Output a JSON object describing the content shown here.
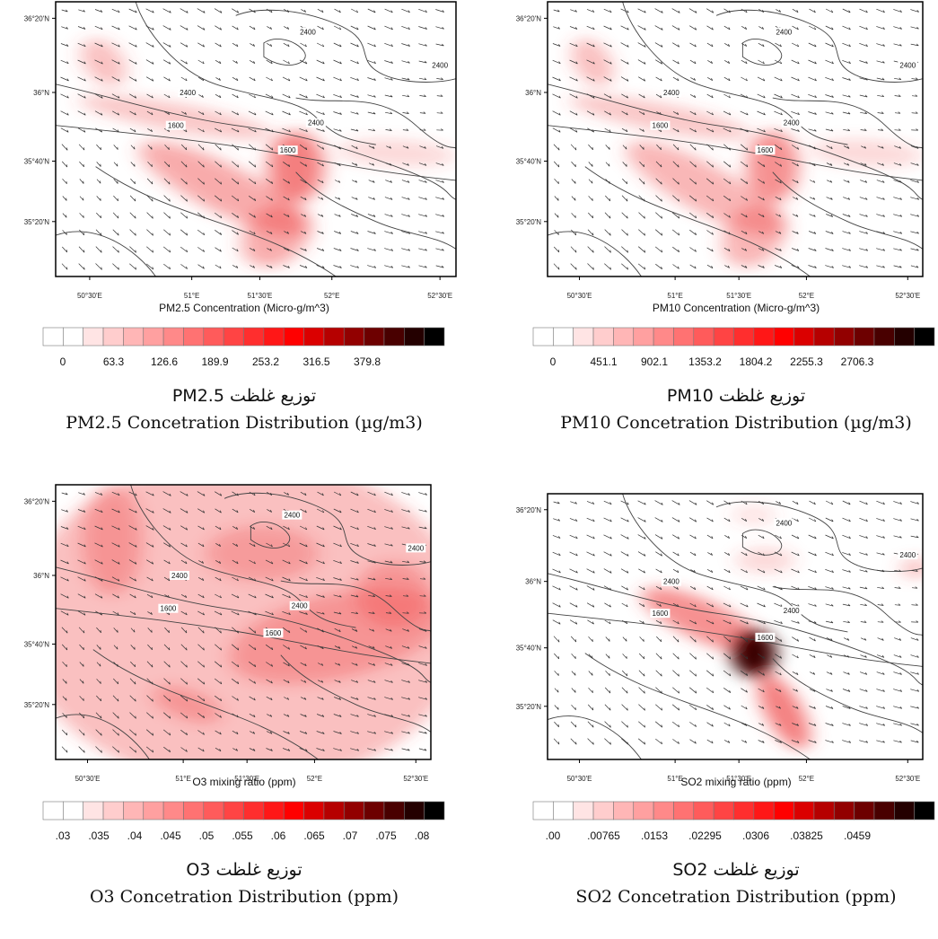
{
  "panels": [
    {
      "map": {
        "lat_labels": [
          "36°20'N",
          "36°N",
          "35°40'N",
          "35°20'N"
        ],
        "lon_labels": [
          "50°30'E",
          "51°E",
          "51°30'E",
          "52°E",
          "52°30'E"
        ],
        "contour_labels": [
          "2400",
          "2400",
          "2400",
          "1600",
          "2400",
          "1600"
        ]
      },
      "colorbar": {
        "title": "PM2.5 Concentration (Micro-g/m^3)",
        "ticks": [
          "0",
          "63.3",
          "126.6",
          "189.9",
          "253.2",
          "316.5",
          "379.8"
        ]
      },
      "caption_fa": "توزیع غلظت PM2.5",
      "caption_en": "PM2.5 Concetration Distribution (µg/m3)"
    },
    {
      "map": {
        "lat_labels": [
          "36°20'N",
          "36°N",
          "35°40'N",
          "35°20'N"
        ],
        "lon_labels": [
          "50°30'E",
          "51°E",
          "51°30'E",
          "52°E",
          "52°30'E"
        ],
        "contour_labels": [
          "2400",
          "2400",
          "2400",
          "1600",
          "2400",
          "1600"
        ]
      },
      "colorbar": {
        "title": "PM10 Concentration (Micro-g/m^3)",
        "ticks": [
          "0",
          "451.1",
          "902.1",
          "1353.2",
          "1804.2",
          "2255.3",
          "2706.3"
        ]
      },
      "caption_fa": "توزیع غلظت PM10",
      "caption_en": "PM10 Concetration Distribution (µg/m3)"
    },
    {
      "map": {
        "lat_labels": [
          "36°20'N",
          "36°N",
          "35°40'N",
          "35°20'N"
        ],
        "lon_labels": [
          "50°30'E",
          "51°E",
          "51°30'E",
          "52°E",
          "52°30'E"
        ],
        "contour_labels": [
          "2400",
          "2400",
          "2400",
          "1600",
          "2400",
          "1600"
        ]
      },
      "colorbar": {
        "title": "O3 mixing ratio (ppm)",
        "ticks": [
          ".03",
          ".035",
          ".04",
          ".045",
          ".05",
          ".055",
          ".06",
          ".065",
          ".07",
          ".075",
          ".08"
        ]
      },
      "caption_fa": "توزیع غلظت O3",
      "caption_en": "O3 Concetration Distribution (ppm)"
    },
    {
      "map": {
        "lat_labels": [
          "36°20'N",
          "36°N",
          "35°40'N",
          "35°20'N"
        ],
        "lon_labels": [
          "50°30'E",
          "51°E",
          "51°30'E",
          "52°E",
          "52°30'E"
        ],
        "contour_labels": [
          "2400",
          "2400",
          "2400",
          "1600",
          "2400",
          "1600"
        ]
      },
      "colorbar": {
        "title": "SO2 mixing ratio (ppm)",
        "ticks": [
          ".00",
          ".00765",
          ".0153",
          ".02295",
          ".0306",
          ".03825",
          ".0459"
        ]
      },
      "caption_fa": "توزیع غلظت SO2",
      "caption_en": "SO2 Concetration Distribution (ppm)"
    }
  ]
}
